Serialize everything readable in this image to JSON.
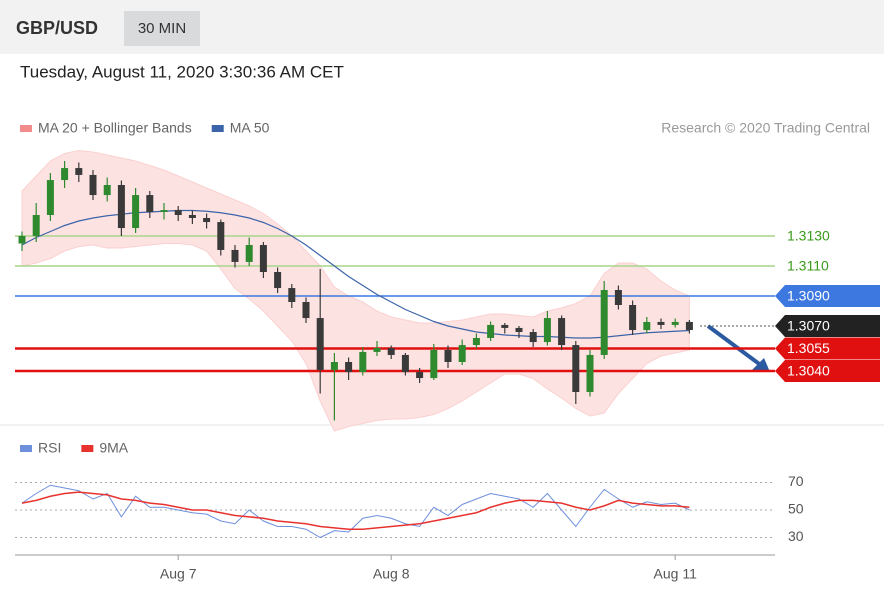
{
  "chart_data": {
    "type": "candlestick",
    "title": "GBP/USD",
    "subtitle": "30 MIN",
    "timestamp": "Tuesday, August 11, 2020 3:30:36 AM CET",
    "credit": "Research © 2020 Trading Central",
    "up_color": "#2f8a2f",
    "down_color": "#3a3a3a",
    "ylim": [
      1.3004,
      1.3188
    ],
    "open": [
      1.3125,
      1.313,
      1.3144,
      1.31673,
      1.31753,
      1.31707,
      1.31573,
      1.3164,
      1.31353,
      1.31573,
      1.3146,
      1.31473,
      1.3144,
      1.3142,
      1.31393,
      1.31207,
      1.31127,
      1.3124,
      1.3106,
      1.30953,
      1.3086,
      1.30753,
      1.30407,
      1.3046,
      1.30393,
      1.30527,
      1.30553,
      1.30507,
      1.30393,
      1.30353,
      1.3054,
      1.3046,
      1.30573,
      1.3062,
      1.30707,
      1.30687,
      1.3066,
      1.30593,
      1.30753,
      1.30573,
      1.3026,
      1.30507,
      1.3094,
      1.3084,
      1.30673,
      1.30727,
      1.30707,
      1.30727
    ],
    "high": [
      1.3133,
      1.3152,
      1.3172,
      1.318,
      1.3179,
      1.3174,
      1.3169,
      1.3167,
      1.3162,
      1.316,
      1.3152,
      1.315,
      1.3147,
      1.3145,
      1.3141,
      1.3124,
      1.3129,
      1.3126,
      1.3109,
      1.3098,
      1.3089,
      1.3108,
      1.3052,
      1.3049,
      1.3056,
      1.306,
      1.3057,
      1.3052,
      1.3042,
      1.3058,
      1.3057,
      1.3061,
      1.3065,
      1.3073,
      1.3072,
      1.307,
      1.3068,
      1.308,
      1.3077,
      1.306,
      1.3054,
      1.31,
      1.3097,
      1.3087,
      1.3076,
      1.3075,
      1.3075,
      1.3074
    ],
    "low": [
      1.312,
      1.3126,
      1.314,
      1.3162,
      1.3166,
      1.3154,
      1.3153,
      1.313,
      1.3132,
      1.3142,
      1.3141,
      1.314,
      1.3138,
      1.3135,
      1.3117,
      1.3109,
      1.311,
      1.3102,
      1.3092,
      1.3082,
      1.3072,
      1.3025,
      1.3007,
      1.3034,
      1.3037,
      1.305,
      1.3048,
      1.3037,
      1.3032,
      1.3034,
      1.3042,
      1.3044,
      1.3055,
      1.306,
      1.3065,
      1.3062,
      1.3056,
      1.3057,
      1.3054,
      1.3018,
      1.3023,
      1.3048,
      1.3081,
      1.3064,
      1.3065,
      1.3068,
      1.3069,
      1.3065
    ],
    "close": [
      1.313,
      1.3144,
      1.31673,
      1.31753,
      1.31707,
      1.31573,
      1.3164,
      1.31353,
      1.31573,
      1.3146,
      1.31473,
      1.3144,
      1.3142,
      1.31393,
      1.31207,
      1.31127,
      1.3124,
      1.3106,
      1.30953,
      1.3086,
      1.30753,
      1.30407,
      1.3046,
      1.30393,
      1.30527,
      1.30553,
      1.30507,
      1.30393,
      1.30353,
      1.3054,
      1.3046,
      1.30573,
      1.3062,
      1.30707,
      1.30687,
      1.3066,
      1.30593,
      1.30753,
      1.30573,
      1.3026,
      1.30507,
      1.3094,
      1.3084,
      1.30673,
      1.30727,
      1.30707,
      1.30727,
      1.30673
    ],
    "series": [
      {
        "name": "MA 20 + Bollinger Bands",
        "color": "#f28b8b",
        "upper": [
          1.316,
          1.317,
          1.318,
          1.3185,
          1.3187,
          1.3186,
          1.3184,
          1.3182,
          1.318,
          1.3177,
          1.3174,
          1.317,
          1.3166,
          1.3162,
          1.3158,
          1.3154,
          1.315,
          1.3145,
          1.3138,
          1.313,
          1.312,
          1.311,
          1.3096,
          1.309,
          1.3086,
          1.308,
          1.3076,
          1.3074,
          1.3072,
          1.3072,
          1.3073,
          1.3074,
          1.3076,
          1.3078,
          1.3078,
          1.3077,
          1.3076,
          1.308,
          1.3082,
          1.3085,
          1.309,
          1.3105,
          1.3112,
          1.3112,
          1.3108,
          1.31,
          1.3094,
          1.309
        ],
        "lower": [
          1.311,
          1.3112,
          1.3115,
          1.312,
          1.3123,
          1.3124,
          1.3122,
          1.3122,
          1.3123,
          1.3124,
          1.3125,
          1.3125,
          1.3124,
          1.312,
          1.3108,
          1.3095,
          1.3088,
          1.308,
          1.307,
          1.306,
          1.3045,
          1.302,
          1.3,
          1.3003,
          1.3005,
          1.3007,
          1.3008,
          1.3008,
          1.3009,
          1.3011,
          1.3015,
          1.302,
          1.3026,
          1.3032,
          1.3038,
          1.3038,
          1.3035,
          1.3028,
          1.3022,
          1.3015,
          1.301,
          1.3012,
          1.3025,
          1.3035,
          1.3045,
          1.305,
          1.3052,
          1.3054
        ]
      },
      {
        "name": "MA 50",
        "color": "#3c64a8",
        "values": [
          1.3124,
          1.3129,
          1.3133,
          1.3137,
          1.314,
          1.3142,
          1.31435,
          1.31445,
          1.31455,
          1.3146,
          1.31465,
          1.3147,
          1.3147,
          1.31465,
          1.31455,
          1.3144,
          1.3142,
          1.3139,
          1.3135,
          1.313,
          1.3124,
          1.3117,
          1.311,
          1.3103,
          1.3097,
          1.3091,
          1.3086,
          1.3081,
          1.3077,
          1.3073,
          1.307,
          1.3068,
          1.3066,
          1.3065,
          1.3064,
          1.30635,
          1.3063,
          1.3063,
          1.30625,
          1.3062,
          1.3062,
          1.30625,
          1.30635,
          1.30645,
          1.30655,
          1.3066,
          1.30665,
          1.3067
        ]
      }
    ],
    "levels": [
      {
        "value": 1.313,
        "label": "1.3130",
        "color": "#a8d48a",
        "text_color": "#3a9a1a",
        "tag": false
      },
      {
        "value": 1.311,
        "label": "1.3110",
        "color": "#a8d48a",
        "text_color": "#3a9a1a",
        "tag": false
      },
      {
        "value": 1.309,
        "label": "1.3090",
        "color": "#3c78e0",
        "text_color": "#ffffff",
        "tag": true
      },
      {
        "value": 1.307,
        "label": "1.3070",
        "color": "#222222",
        "text_color": "#ffffff",
        "tag": true
      },
      {
        "value": 1.3055,
        "label": "1.3055",
        "color": "#e01010",
        "text_color": "#ffffff",
        "tag": true
      },
      {
        "value": 1.304,
        "label": "1.3040",
        "color": "#e01010",
        "text_color": "#ffffff",
        "tag": true
      }
    ],
    "xticks": [
      {
        "value": 11,
        "label": "Aug 7"
      },
      {
        "value": 26,
        "label": "Aug 8"
      },
      {
        "value": 46,
        "label": "Aug 11"
      }
    ],
    "rsi": {
      "ylim": [
        20,
        80
      ],
      "yticks": [
        30,
        50,
        70
      ],
      "series": [
        {
          "name": "RSI",
          "color": "#6d8fdc",
          "values": [
            55,
            62,
            68,
            66,
            64,
            58,
            62,
            45,
            60,
            52,
            52,
            50,
            48,
            47,
            42,
            40,
            50,
            42,
            38,
            38,
            36,
            30,
            35,
            34,
            44,
            46,
            44,
            40,
            38,
            52,
            46,
            54,
            58,
            62,
            60,
            58,
            52,
            62,
            50,
            38,
            52,
            65,
            58,
            52,
            56,
            54,
            55,
            50
          ]
        },
        {
          "name": "9MA",
          "color": "#e8322e",
          "values": [
            55,
            57,
            60,
            62,
            63,
            62,
            61,
            58,
            57,
            55,
            54,
            52,
            50,
            50,
            48,
            46,
            45,
            44,
            42,
            41,
            40,
            38,
            37,
            36,
            36,
            37,
            38,
            39,
            40,
            42,
            44,
            46,
            48,
            52,
            55,
            57,
            57,
            56,
            55,
            52,
            50,
            53,
            57,
            55,
            54,
            53,
            53,
            52
          ]
        }
      ]
    }
  }
}
